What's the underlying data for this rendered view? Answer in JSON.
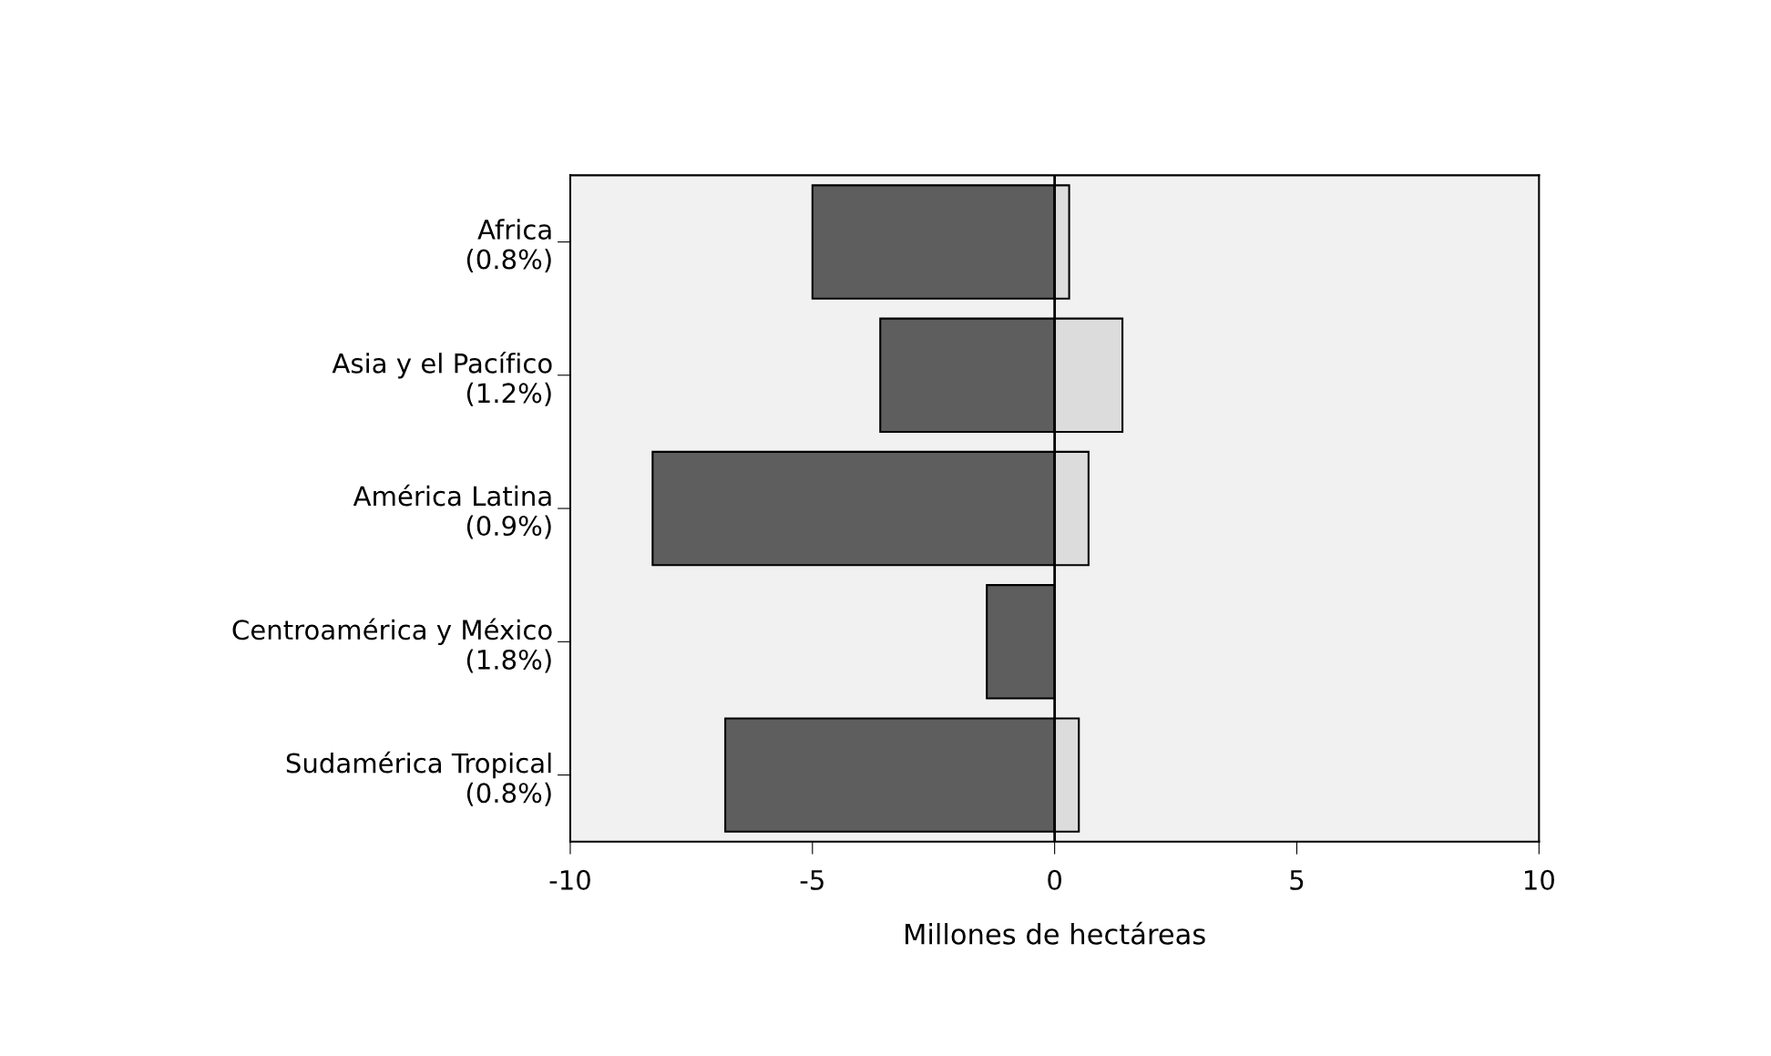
{
  "chart_data": {
    "type": "bar",
    "orientation": "horizontal",
    "stacked": true,
    "categories": [
      "Africa\n(0.8%)",
      "Asia y el Pacífico\n(1.2%)",
      "América Latina\n(0.9%)",
      "Centroamérica y México\n(1.8%)",
      "Sudamérica Tropical\n(0.8%)"
    ],
    "series": [
      {
        "color": "#5e5e5e",
        "values": [
          -5.0,
          -3.6,
          -8.3,
          -1.4,
          -6.8
        ]
      },
      {
        "color": "#dcdcdc",
        "values": [
          0.3,
          1.4,
          0.7,
          null,
          0.5
        ]
      }
    ],
    "xlabel": "Millones de hectáreas",
    "xlim": [
      -10,
      10
    ],
    "xticks": [
      -10,
      -5,
      0,
      5,
      10
    ],
    "ref_lines": [
      {
        "axis": "x",
        "value": 0,
        "color": "#000000"
      }
    ],
    "grid": false,
    "legend": false
  }
}
